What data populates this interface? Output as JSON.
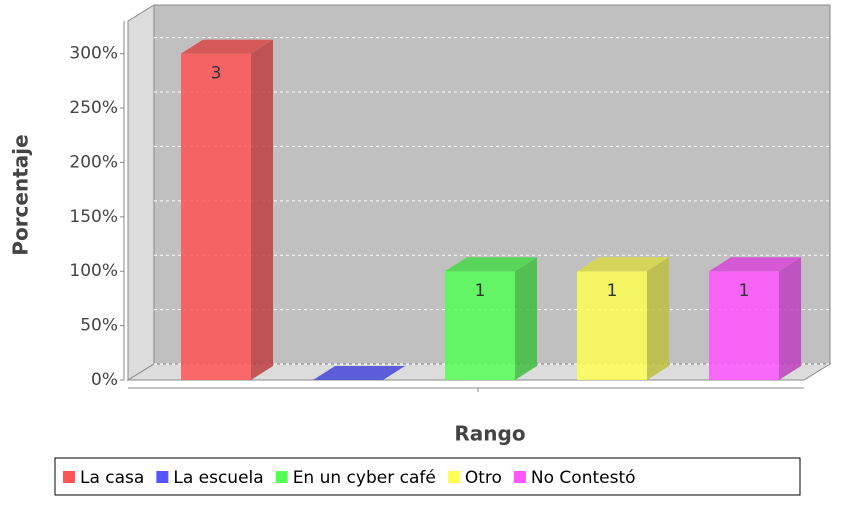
{
  "chart_data": {
    "type": "bar3d",
    "categories": [
      "La casa",
      "La escuela",
      "En un cyber café",
      "Otro",
      "No Contestó"
    ],
    "values": [
      3,
      0,
      1,
      1,
      1
    ],
    "value_labels": [
      "3",
      null,
      "1",
      "1",
      "1"
    ],
    "colors": [
      "#ff5555",
      "#5555ff",
      "#55ff55",
      "#ffff55",
      "#ff55ff"
    ],
    "x_label": "Rango",
    "y_label": "Porcentaje",
    "ylim": [
      0,
      3.3
    ],
    "yticks": [
      {
        "value": 0,
        "label": "0%"
      },
      {
        "value": 0.5,
        "label": "50%"
      },
      {
        "value": 1,
        "label": "100%"
      },
      {
        "value": 1.5,
        "label": "150%"
      },
      {
        "value": 2,
        "label": "200%"
      },
      {
        "value": 2.5,
        "label": "250%"
      },
      {
        "value": 3,
        "label": "300%"
      }
    ],
    "grid": true,
    "legend": "bottom"
  }
}
